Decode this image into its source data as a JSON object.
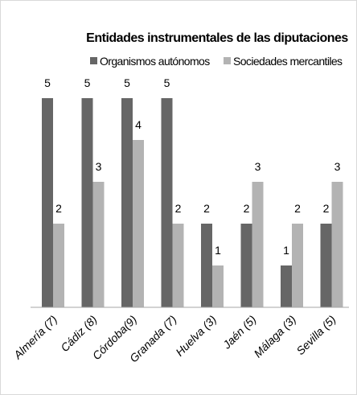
{
  "chart_data": {
    "type": "bar",
    "title": "Entidades instrumentales de las diputaciones",
    "categories": [
      "Almería (7)",
      "Cádiz  (8)",
      "Córdoba(9)",
      "Granada (7)",
      "Huelva (3)",
      "Jaén  (5)",
      "Málaga (3)",
      "Sevilla (5)"
    ],
    "series": [
      {
        "name": "Organismos autónomos",
        "color": "#666666",
        "values": [
          5,
          5,
          5,
          5,
          2,
          2,
          1,
          2
        ]
      },
      {
        "name": "Sociedades mercantiles",
        "color": "#b3b3b3",
        "values": [
          2,
          3,
          4,
          2,
          1,
          3,
          2,
          3
        ]
      }
    ]
  }
}
